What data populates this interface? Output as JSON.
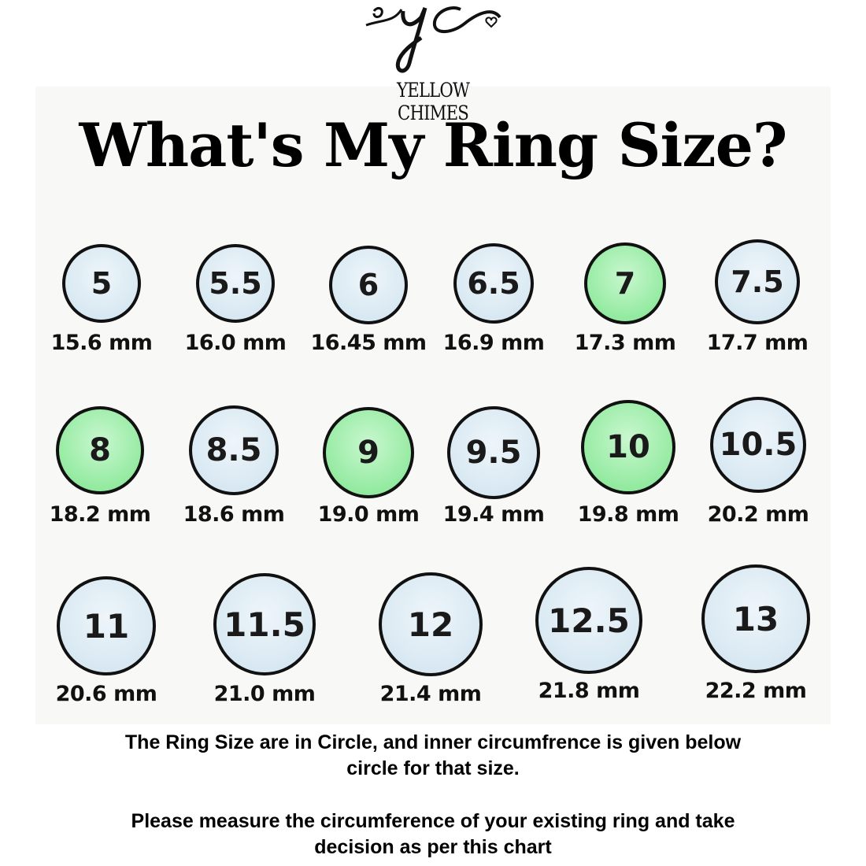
{
  "logo": {
    "monogram": "yc",
    "brand": "YELLOW CHIMES"
  },
  "title": "What's My Ring Size?",
  "colors": {
    "ring_blue": "#cfe3ef",
    "ring_green": "#7ee58e",
    "ring_border": "#111111"
  },
  "rings": [
    {
      "size": "5",
      "mm": "15.6 mm",
      "highlight": false
    },
    {
      "size": "5.5",
      "mm": "16.0 mm",
      "highlight": false
    },
    {
      "size": "6",
      "mm": "16.45 mm",
      "highlight": false
    },
    {
      "size": "6.5",
      "mm": "16.9 mm",
      "highlight": false
    },
    {
      "size": "7",
      "mm": "17.3 mm",
      "highlight": true
    },
    {
      "size": "7.5",
      "mm": "17.7 mm",
      "highlight": false
    },
    {
      "size": "8",
      "mm": "18.2 mm",
      "highlight": true
    },
    {
      "size": "8.5",
      "mm": "18.6 mm",
      "highlight": false
    },
    {
      "size": "9",
      "mm": "19.0 mm",
      "highlight": true
    },
    {
      "size": "9.5",
      "mm": "19.4 mm",
      "highlight": false
    },
    {
      "size": "10",
      "mm": "19.8 mm",
      "highlight": true
    },
    {
      "size": "10.5",
      "mm": "20.2 mm",
      "highlight": false
    },
    {
      "size": "11",
      "mm": "20.6 mm",
      "highlight": false
    },
    {
      "size": "11.5",
      "mm": "21.0 mm",
      "highlight": false
    },
    {
      "size": "12",
      "mm": "21.4 mm",
      "highlight": false
    },
    {
      "size": "12.5",
      "mm": "21.8 mm",
      "highlight": false
    },
    {
      "size": "13",
      "mm": "22.2 mm",
      "highlight": false
    }
  ],
  "notes": {
    "line1": "The Ring Size are in Circle, and inner circumfrence is  given below",
    "line2": "circle for that size.",
    "line3": "Please measure the circumference of your existing ring and take",
    "line4": "decision as per this chart"
  }
}
